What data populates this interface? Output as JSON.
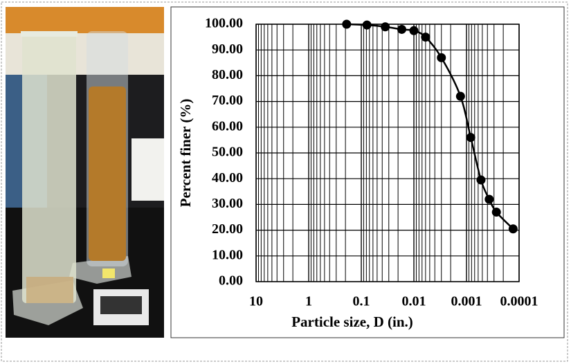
{
  "chart_data": {
    "type": "line",
    "x_label": "Particle size, D (in.)",
    "y_label": "Percent finer (%)",
    "xscale": "log",
    "xlim": [
      10,
      0.0001
    ],
    "xticks": [
      10,
      1,
      0.1,
      0.01,
      0.001,
      0.0001
    ],
    "ylim": [
      0,
      100
    ],
    "yticks": [
      {
        "value": 0,
        "label": "0.00"
      },
      {
        "value": 10,
        "label": "10.00"
      },
      {
        "value": 20,
        "label": "20.00"
      },
      {
        "value": 30,
        "label": "30.00"
      },
      {
        "value": 40,
        "label": "40.00"
      },
      {
        "value": 50,
        "label": "50.00"
      },
      {
        "value": 60,
        "label": "60.00"
      },
      {
        "value": 70,
        "label": "70.00"
      },
      {
        "value": 80,
        "label": "80.00"
      },
      {
        "value": 90,
        "label": "90.00"
      },
      {
        "value": 100,
        "label": "100.00"
      }
    ],
    "grid": true,
    "color": "#000000",
    "x": [
      0.19,
      0.078,
      0.035,
      0.017,
      0.01,
      0.006,
      0.003,
      0.0013,
      0.00083,
      0.00053,
      0.00037,
      0.00027,
      0.00013
    ],
    "values": [
      100,
      99.7,
      99,
      98,
      97.5,
      95,
      87,
      72,
      56,
      39.5,
      32,
      27,
      20.5
    ]
  }
}
